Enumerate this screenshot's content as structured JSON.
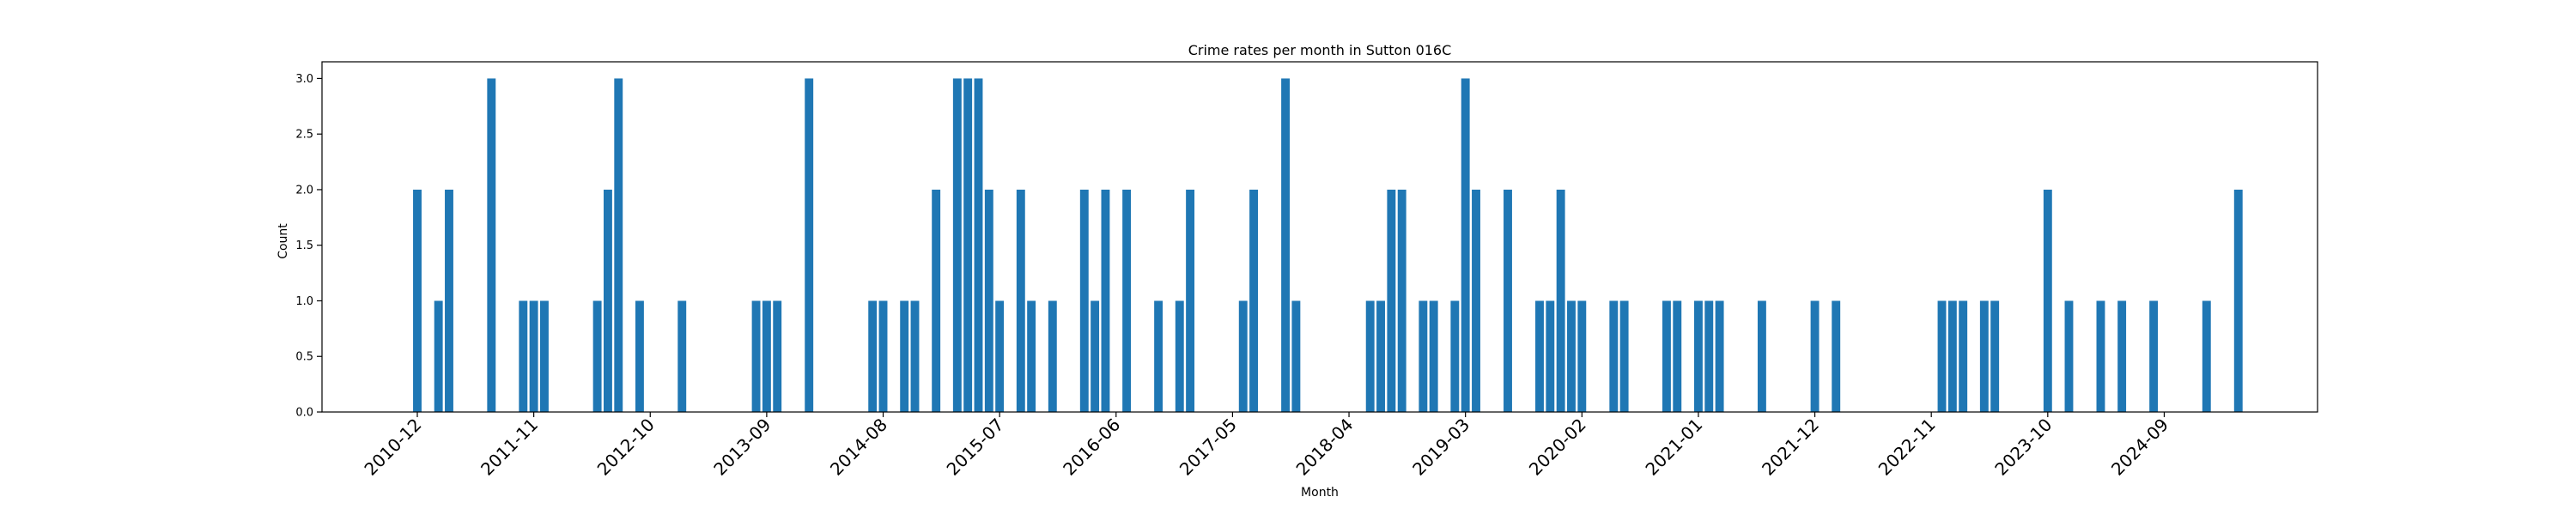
{
  "chart_data": {
    "type": "bar",
    "title": "Crime rates per month in Sutton 016C",
    "xlabel": "Month",
    "ylabel": "Count",
    "ylim": [
      0,
      3.15
    ],
    "yticks": [
      0.0,
      0.5,
      1.0,
      1.5,
      2.0,
      2.5,
      3.0
    ],
    "ytick_labels": [
      "0.0",
      "0.5",
      "1.0",
      "1.5",
      "2.0",
      "2.5",
      "3.0"
    ],
    "xtick_labels": [
      "2010-12",
      "2011-11",
      "2012-10",
      "2013-09",
      "2014-08",
      "2015-07",
      "2016-06",
      "2017-05",
      "2018-04",
      "2019-03",
      "2020-02",
      "2021-01",
      "2021-12",
      "2022-11",
      "2023-10",
      "2024-09"
    ],
    "grid": false,
    "color": "#1f77b4",
    "x": [
      "2010-12",
      "2011-02",
      "2011-03",
      "2011-07",
      "2011-10",
      "2011-11",
      "2011-12",
      "2012-05",
      "2012-06",
      "2012-07",
      "2012-09",
      "2013-01",
      "2013-08",
      "2013-09",
      "2013-10",
      "2014-01",
      "2014-07",
      "2014-08",
      "2014-10",
      "2014-11",
      "2015-01",
      "2015-03",
      "2015-04",
      "2015-05",
      "2015-06",
      "2015-07",
      "2015-09",
      "2015-10",
      "2015-12",
      "2016-03",
      "2016-04",
      "2016-05",
      "2016-07",
      "2016-10",
      "2016-12",
      "2017-01",
      "2017-06",
      "2017-07",
      "2017-10",
      "2017-11",
      "2018-06",
      "2018-07",
      "2018-08",
      "2018-09",
      "2018-11",
      "2018-12",
      "2019-02",
      "2019-03",
      "2019-04",
      "2019-07",
      "2019-10",
      "2019-11",
      "2019-12",
      "2020-01",
      "2020-02",
      "2020-05",
      "2020-06",
      "2020-10",
      "2020-11",
      "2021-01",
      "2021-02",
      "2021-03",
      "2021-07",
      "2021-12",
      "2022-02",
      "2022-12",
      "2023-01",
      "2023-02",
      "2023-04",
      "2023-05",
      "2023-10",
      "2023-12",
      "2024-03",
      "2024-05",
      "2024-08",
      "2025-01",
      "2025-04"
    ],
    "values": [
      2,
      1,
      2,
      3,
      1,
      1,
      1,
      1,
      2,
      3,
      1,
      1,
      1,
      1,
      1,
      3,
      1,
      1,
      1,
      1,
      2,
      3,
      3,
      3,
      2,
      1,
      2,
      1,
      1,
      2,
      1,
      2,
      2,
      1,
      1,
      2,
      1,
      2,
      3,
      1,
      1,
      1,
      2,
      2,
      1,
      1,
      1,
      3,
      2,
      2,
      1,
      1,
      2,
      1,
      1,
      1,
      1,
      1,
      1,
      1,
      1,
      1,
      1,
      1,
      1,
      1,
      1,
      1,
      1,
      1,
      2,
      1,
      1,
      1,
      1,
      1,
      2
    ]
  }
}
